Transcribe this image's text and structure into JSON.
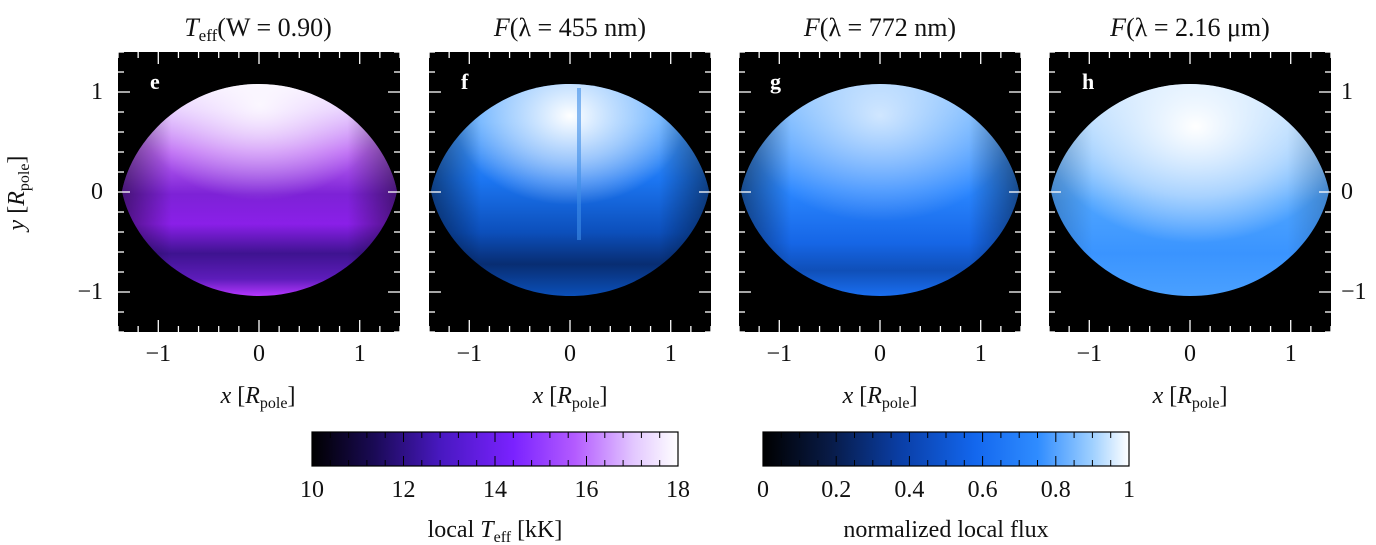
{
  "figure": {
    "ylabel": {
      "var": "y",
      "unit": "R",
      "unit_sub": "pole"
    },
    "xlabel": {
      "var": "x",
      "unit": "R",
      "unit_sub": "pole"
    },
    "x_ticks": [
      "−1",
      "0",
      "1"
    ],
    "y_ticks": [
      "1",
      "0",
      "−1"
    ],
    "x_range": [
      -1.4,
      1.4
    ],
    "y_range": [
      -1.4,
      1.4
    ],
    "panels": [
      {
        "letter": "e",
        "title": {
          "func": "T",
          "func_sub": "eff",
          "arg": "(W = 0.90)"
        },
        "colormap": "purple"
      },
      {
        "letter": "f",
        "title": {
          "func": "F",
          "func_sub": "",
          "arg": "(λ = 455 nm)"
        },
        "colormap": "blue"
      },
      {
        "letter": "g",
        "title": {
          "func": "F",
          "func_sub": "",
          "arg": "(λ = 772 nm)"
        },
        "colormap": "blue"
      },
      {
        "letter": "h",
        "title": {
          "func": "F",
          "func_sub": "",
          "arg": "(λ = 2.16 μm)"
        },
        "colormap": "blue"
      }
    ],
    "colorbars": [
      {
        "name": "teff",
        "ticks": [
          "10",
          "12",
          "14",
          "16",
          "18"
        ],
        "range": [
          10,
          18
        ],
        "label_pre": "local ",
        "label_var": "T",
        "label_sub": "eff",
        "label_post": " [kK]",
        "stops": [
          "#000000",
          "#1a0a55",
          "#4818c0",
          "#7a22ff",
          "#b45cff",
          "#e3c8ff",
          "#ffffff"
        ]
      },
      {
        "name": "flux",
        "ticks": [
          "0",
          "0.2",
          "0.4",
          "0.6",
          "0.8",
          "1"
        ],
        "range": [
          0,
          1
        ],
        "label": "normalized local flux",
        "stops": [
          "#000000",
          "#081a45",
          "#0a3fa8",
          "#1367ee",
          "#2f8cff",
          "#9fd0ff",
          "#ffffff"
        ]
      }
    ],
    "colors": {
      "frame_bg": "#000000",
      "purple_star": "#a020ee",
      "blue_star": "#1570f5"
    }
  }
}
